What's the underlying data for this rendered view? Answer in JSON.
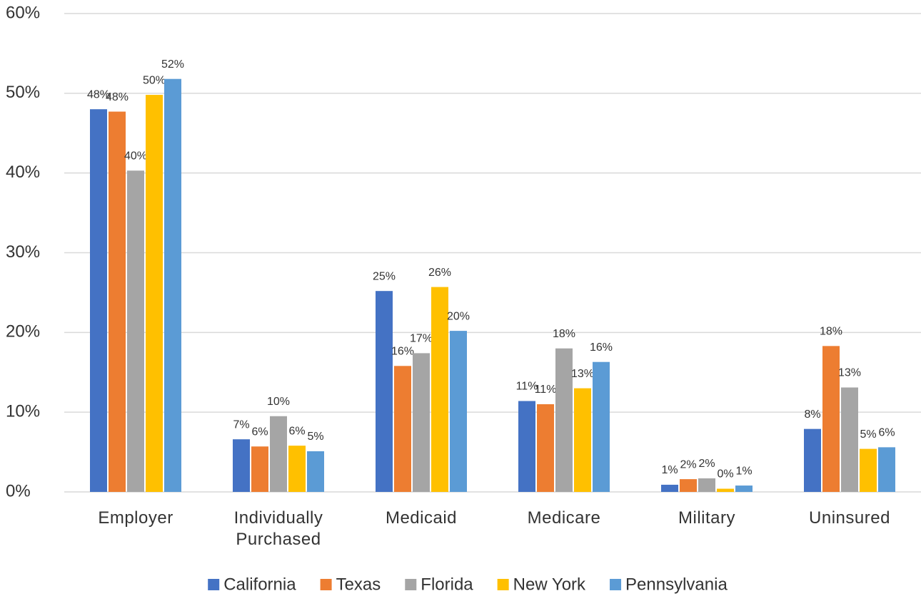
{
  "chart_data": {
    "type": "bar",
    "categories": [
      "Employer",
      "Individually Purchased",
      "Medicaid",
      "Medicare",
      "Military",
      "Uninsured"
    ],
    "series": [
      {
        "name": "California",
        "color": "#4472c4",
        "values": [
          48.0,
          6.6,
          25.2,
          11.4,
          0.9,
          7.9
        ],
        "value_labels": [
          "48%",
          "7%",
          "25%",
          "11%",
          "1%",
          "8%"
        ]
      },
      {
        "name": "Texas",
        "color": "#ed7d31",
        "values": [
          47.7,
          5.7,
          15.8,
          11.0,
          1.6,
          18.3
        ],
        "value_labels": [
          "48%",
          "6%",
          "16%",
          "11%",
          "2%",
          "18%"
        ]
      },
      {
        "name": "Florida",
        "color": "#a5a5a5",
        "values": [
          40.3,
          9.5,
          17.4,
          18.0,
          1.7,
          13.1
        ],
        "value_labels": [
          "40%",
          "10%",
          "17%",
          "18%",
          "2%",
          "13%"
        ]
      },
      {
        "name": "New York",
        "color": "#ffc000",
        "values": [
          49.8,
          5.8,
          25.7,
          13.0,
          0.4,
          5.4
        ],
        "value_labels": [
          "50%",
          "6%",
          "26%",
          "13%",
          "0%",
          "5%"
        ]
      },
      {
        "name": "Pennsylvania",
        "color": "#5b9bd5",
        "values": [
          51.8,
          5.1,
          20.2,
          16.3,
          0.8,
          5.6
        ],
        "value_labels": [
          "52%",
          "5%",
          "20%",
          "16%",
          "1%",
          "6%"
        ]
      }
    ],
    "ylim": [
      0,
      60
    ],
    "yticks": [
      {
        "value": 0,
        "label": "0%"
      },
      {
        "value": 10,
        "label": "10%"
      },
      {
        "value": 20,
        "label": "20%"
      },
      {
        "value": 30,
        "label": "30%"
      },
      {
        "value": 40,
        "label": "40%"
      },
      {
        "value": 50,
        "label": "50%"
      },
      {
        "value": 60,
        "label": "60%"
      }
    ],
    "grid": true,
    "legend": "bottom"
  }
}
